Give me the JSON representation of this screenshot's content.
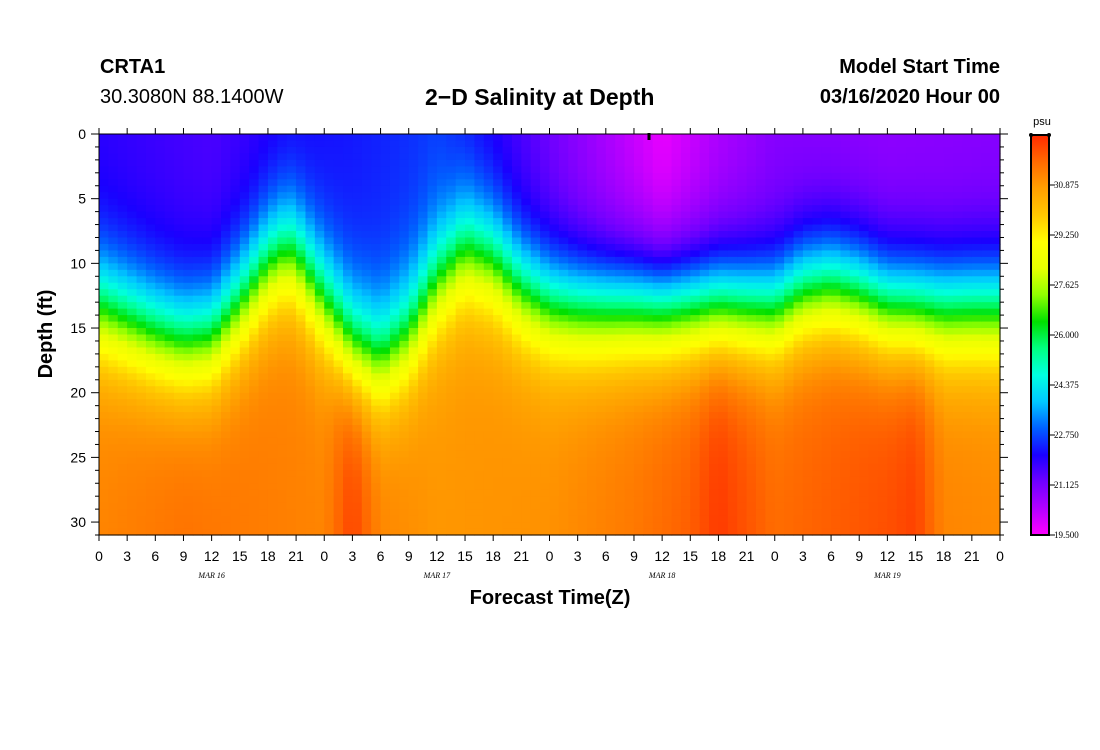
{
  "header": {
    "station_id": "CRTA1",
    "station_coords": "30.3080N 88.1400W",
    "title": "2−D Salinity at Depth",
    "start_label": "Model Start Time",
    "start_time": "03/16/2020 Hour 00"
  },
  "chart_data": {
    "type": "heatmap",
    "title": "2−D Salinity at Depth",
    "xlabel": "Forecast Time(Z)",
    "ylabel": "Depth (ft)",
    "x_unit": "forecast hour",
    "xlim": [
      0,
      96
    ],
    "ylim": [
      0,
      31
    ],
    "y_ticks": [
      0,
      5,
      10,
      15,
      20,
      25,
      30
    ],
    "x_tick_labels": [
      "0",
      "3",
      "6",
      "9",
      "12",
      "15",
      "18",
      "21",
      "0",
      "3",
      "6",
      "9",
      "12",
      "15",
      "18",
      "21",
      "0",
      "3",
      "6",
      "9",
      "12",
      "15",
      "18",
      "21",
      "0",
      "3",
      "6",
      "9",
      "12",
      "15",
      "18",
      "21",
      "0"
    ],
    "date_labels": [
      {
        "label": "MAR 16",
        "hour": 12
      },
      {
        "label": "MAR 17",
        "hour": 36
      },
      {
        "label": "MAR 18",
        "hour": 60
      },
      {
        "label": "MAR 19",
        "hour": 84
      }
    ],
    "colorbar": {
      "unit": "psu",
      "min": 19.5,
      "max": 32.5,
      "ticks": [
        "30.875",
        "29.250",
        "27.625",
        "26.000",
        "24.375",
        "22.750",
        "21.125",
        "19.500"
      ],
      "tick_values": [
        30.875,
        29.25,
        27.625,
        26.0,
        24.375,
        22.75,
        21.125,
        19.5
      ],
      "colors": [
        "#ff00ff",
        "#b300ff",
        "#7000ff",
        "#1a00ff",
        "#0060ff",
        "#00c8ff",
        "#00ffe0",
        "#00ff80",
        "#00e000",
        "#90ff00",
        "#e8ff00",
        "#ffff00",
        "#ffc800",
        "#ff9f00",
        "#ff6a00",
        "#ff2a00"
      ]
    },
    "halocline_depth_ft": {
      "hours": [
        0,
        3,
        6,
        9,
        12,
        15,
        18,
        20,
        21,
        24,
        27,
        30,
        33,
        36,
        39,
        42,
        45,
        48,
        51,
        54,
        57,
        60,
        63,
        66,
        69,
        72,
        75,
        78,
        81,
        84,
        87,
        90,
        93,
        96
      ],
      "values": [
        13.5,
        14.5,
        15.5,
        16.2,
        15.8,
        13.2,
        10.2,
        9.2,
        9.6,
        13.0,
        16.5,
        17.5,
        15.5,
        11.5,
        9.0,
        9.8,
        12.0,
        13.2,
        13.5,
        13.5,
        13.4,
        13.5,
        13.4,
        13.3,
        13.5,
        13.6,
        12.2,
        11.8,
        12.4,
        13.4,
        13.6,
        13.6,
        13.5,
        13.5
      ]
    },
    "surface_salinity_psu": {
      "hours": [
        0,
        12,
        24,
        36,
        48,
        60,
        66,
        72,
        84,
        96
      ],
      "values": [
        21.9,
        21.6,
        22.2,
        22.6,
        21.2,
        19.7,
        20.4,
        20.9,
        20.8,
        20.9
      ]
    },
    "bottom_salinity_psu": {
      "hours": [
        0,
        9,
        24,
        27,
        30,
        36,
        48,
        57,
        63,
        66,
        72,
        75,
        84,
        87,
        90,
        96
      ],
      "values": [
        31.2,
        31.5,
        31.2,
        32.2,
        31.2,
        30.9,
        31.0,
        31.4,
        31.8,
        32.3,
        31.6,
        31.7,
        32.0,
        32.2,
        31.2,
        31.1
      ]
    },
    "marker": {
      "hour": 58.6,
      "depth": 0
    }
  }
}
